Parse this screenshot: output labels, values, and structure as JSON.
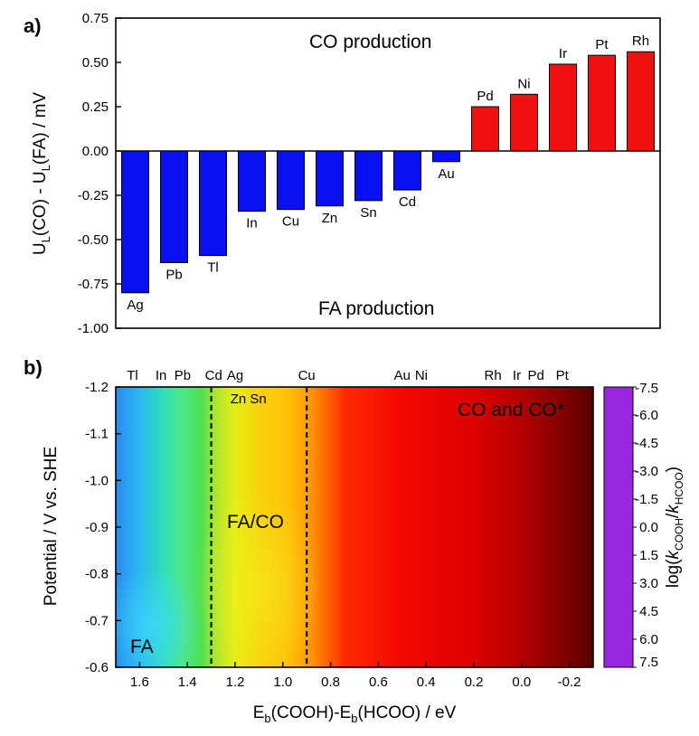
{
  "panels": {
    "a": "a)",
    "b": "b)"
  },
  "chart_data": [
    {
      "type": "bar",
      "categories": [
        "Ag",
        "Pb",
        "Tl",
        "In",
        "Cu",
        "Zn",
        "Sn",
        "Cd",
        "Au",
        "Pd",
        "Ni",
        "Ir",
        "Pt",
        "Rh"
      ],
      "values": [
        -0.8,
        -0.63,
        -0.59,
        -0.34,
        -0.33,
        -0.31,
        -0.28,
        -0.22,
        -0.06,
        0.25,
        0.32,
        0.49,
        0.54,
        0.56
      ],
      "colors": {
        "negative": "#0a10f0",
        "positive": "#f01010"
      },
      "ylabel": "U_L(CO) - U_L(FA) / mV",
      "ylabel_parts": {
        "a": "U",
        "sub1": "L",
        "b": "(CO) - U",
        "sub2": "L",
        "c": "(FA) / mV"
      },
      "ylim": [
        -1.0,
        0.75
      ],
      "yticks": [
        "0.75",
        "0.50",
        "0.25",
        "0.00",
        "-0.25",
        "-0.50",
        "-0.75",
        "-1.00"
      ],
      "ytick_values": [
        0.75,
        0.5,
        0.25,
        0.0,
        -0.25,
        -0.5,
        -0.75,
        -1.0
      ],
      "annotations": {
        "top": "CO production",
        "bottom": "FA production"
      }
    },
    {
      "type": "heatmap",
      "xlabel_parts": {
        "a": "E",
        "sub1": "b",
        "b": "(COOH)-E",
        "sub2": "b",
        "c": "(HCOO) / eV"
      },
      "ylabel": "Potential / V vs. SHE",
      "xlim": [
        1.7,
        -0.3
      ],
      "ylim": [
        -0.6,
        -1.2
      ],
      "xticks": [
        "1.6",
        "1.4",
        "1.2",
        "1.0",
        "0.8",
        "0.6",
        "0.4",
        "0.2",
        "0.0",
        "-0.2"
      ],
      "xtick_values": [
        1.6,
        1.4,
        1.2,
        1.0,
        0.8,
        0.6,
        0.4,
        0.2,
        0.0,
        -0.2
      ],
      "yticks": [
        "-1.2",
        "-1.1",
        "-1.0",
        "-0.9",
        "-0.8",
        "-0.7",
        "-0.6"
      ],
      "ytick_values": [
        -1.2,
        -1.1,
        -1.0,
        -0.9,
        -0.8,
        -0.7,
        -0.6
      ],
      "boundaries": [
        1.3,
        0.9
      ],
      "metals_top": [
        {
          "name": "Tl",
          "x": 1.63
        },
        {
          "name": "In",
          "x": 1.51
        },
        {
          "name": "Pb",
          "x": 1.42
        },
        {
          "name": "Cd",
          "x": 1.29
        },
        {
          "name": "Ag",
          "x": 1.2
        },
        {
          "name": "Cu",
          "x": 0.9
        },
        {
          "name": "Au",
          "x": 0.5
        },
        {
          "name": "Ni",
          "x": 0.42
        },
        {
          "name": "Rh",
          "x": 0.12
        },
        {
          "name": "Ir",
          "x": 0.02
        },
        {
          "name": "Pd",
          "x": -0.06
        },
        {
          "name": "Pt",
          "x": -0.17
        }
      ],
      "metals_inner": {
        "text": "Zn Sn",
        "x": 1.22
      },
      "regions": {
        "FA": "FA",
        "mixed": "FA/CO",
        "co": "CO and CO*"
      },
      "colorbar": {
        "label_parts": {
          "a": "log(",
          "k1": "k",
          "sub1": "COOH",
          "slash": "/",
          "k2": "k",
          "sub2": "HCOO",
          "c": ")"
        },
        "ticks": [
          "-7.5",
          "-6.0",
          "-4.5",
          "-3.0",
          "-1.5",
          "0.0",
          "1.5",
          "3.0",
          "4.5",
          "6.0",
          "7.5"
        ],
        "tick_values": [
          -7.5,
          -6.0,
          -4.5,
          -3.0,
          -1.5,
          0.0,
          1.5,
          3.0,
          4.5,
          6.0,
          7.5
        ],
        "range": [
          -7.5,
          7.5
        ],
        "stops": [
          {
            "v": -7.5,
            "color": "#9a28e0"
          },
          {
            "v": -6.0,
            "color": "#3a3cff"
          },
          {
            "v": -4.5,
            "color": "#0a96ff"
          },
          {
            "v": -3.0,
            "color": "#28e6e6"
          },
          {
            "v": -1.5,
            "color": "#30d050"
          },
          {
            "v": 0.0,
            "color": "#d2e60a"
          },
          {
            "v": 1.5,
            "color": "#ffaa00"
          },
          {
            "v": 3.0,
            "color": "#ff3c00"
          },
          {
            "v": 4.5,
            "color": "#f00000"
          },
          {
            "v": 6.0,
            "color": "#a00000"
          },
          {
            "v": 7.5,
            "color": "#500000"
          }
        ]
      },
      "map_gradient": [
        {
          "x": 1.7,
          "color": "#2a8cf0"
        },
        {
          "x": 1.6,
          "color": "#2ab6f0"
        },
        {
          "x": 1.5,
          "color": "#30e0b8"
        },
        {
          "x": 1.42,
          "color": "#4ee888"
        },
        {
          "x": 1.34,
          "color": "#50e050"
        },
        {
          "x": 1.28,
          "color": "#aee630"
        },
        {
          "x": 1.2,
          "color": "#e6ee14"
        },
        {
          "x": 1.1,
          "color": "#f8d20a"
        },
        {
          "x": 0.98,
          "color": "#ffc008"
        },
        {
          "x": 0.9,
          "color": "#ffa008"
        },
        {
          "x": 0.82,
          "color": "#ff6a04"
        },
        {
          "x": 0.74,
          "color": "#ff2a00"
        },
        {
          "x": 0.5,
          "color": "#f40800"
        },
        {
          "x": 0.2,
          "color": "#dc0000"
        },
        {
          "x": 0.0,
          "color": "#b40000"
        },
        {
          "x": -0.2,
          "color": "#7a0000"
        },
        {
          "x": -0.3,
          "color": "#560000"
        }
      ]
    }
  ]
}
